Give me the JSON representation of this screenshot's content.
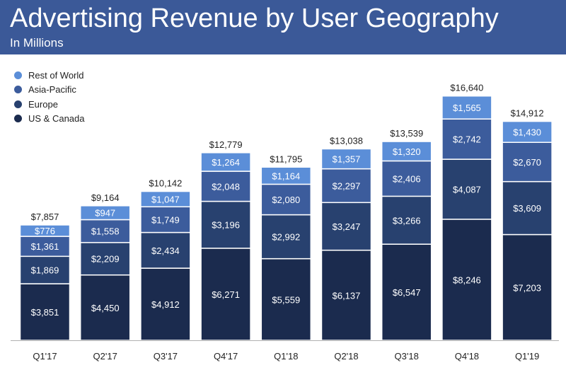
{
  "header": {
    "title": "Advertising Revenue by User Geography",
    "subtitle": "In Millions",
    "background": "#3b5998"
  },
  "chart_data": {
    "type": "bar",
    "stacked": true,
    "title": "Advertising Revenue by User Geography",
    "subtitle": "In Millions",
    "xlabel": "",
    "ylabel": "",
    "ylim": [
      0,
      17000
    ],
    "grid": false,
    "legend": "top-left",
    "categories": [
      "Q1'17",
      "Q2'17",
      "Q3'17",
      "Q4'17",
      "Q1'18",
      "Q2'18",
      "Q3'18",
      "Q4'18",
      "Q1'19"
    ],
    "series": [
      {
        "name": "US & Canada",
        "color": "#1b2b4e",
        "values": [
          3851,
          4450,
          4912,
          6271,
          5559,
          6137,
          6547,
          8246,
          7203
        ],
        "labels": [
          "$3,851",
          "$4,450",
          "$4,912",
          "$6,271",
          "$5,559",
          "$6,137",
          "$6,547",
          "$8,246",
          "$7,203"
        ]
      },
      {
        "name": "Europe",
        "color": "#28416f",
        "values": [
          1869,
          2209,
          2434,
          3196,
          2992,
          3247,
          3266,
          4087,
          3609
        ],
        "labels": [
          "$1,869",
          "$2,209",
          "$2,434",
          "$3,196",
          "$2,992",
          "$3,247",
          "$3,266",
          "$4,087",
          "$3,609"
        ]
      },
      {
        "name": "Asia-Pacific",
        "color": "#3c5c9c",
        "values": [
          1361,
          1558,
          1749,
          2048,
          2080,
          2297,
          2406,
          2742,
          2670
        ],
        "labels": [
          "$1,361",
          "$1,558",
          "$1,749",
          "$2,048",
          "$2,080",
          "$2,297",
          "$2,406",
          "$2,742",
          "$2,670"
        ]
      },
      {
        "name": "Rest of World",
        "color": "#5b8ed8",
        "values": [
          776,
          947,
          1047,
          1264,
          1164,
          1357,
          1320,
          1565,
          1430
        ],
        "labels": [
          "$776",
          "$947",
          "$1,047",
          "$1,264",
          "$1,164",
          "$1,357",
          "$1,320",
          "$1,565",
          "$1,430"
        ]
      }
    ],
    "totals": [
      7857,
      9164,
      10142,
      12779,
      11795,
      13038,
      13539,
      16640,
      14912
    ],
    "total_labels": [
      "$7,857",
      "$9,164",
      "$10,142",
      "$12,779",
      "$11,795",
      "$13,038",
      "$13,539",
      "$16,640",
      "$14,912"
    ]
  }
}
